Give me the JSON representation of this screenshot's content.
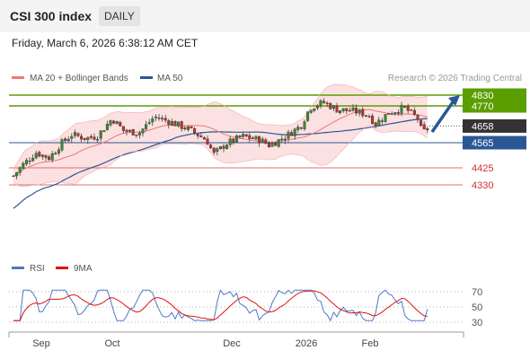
{
  "header": {
    "title": "CSI 300 index",
    "timeframe": "DAILY"
  },
  "datetime": "Friday, March 6, 2026 6:38:12 AM CET",
  "legend": {
    "items": [
      {
        "label": "MA 20 + Bollinger Bands",
        "color": "#ee7777"
      },
      {
        "label": "MA 50",
        "color": "#2b5796"
      }
    ],
    "credit": "Research © 2026 Trading Central"
  },
  "chart_data": [
    {
      "type": "candlestick",
      "y_range": [
        4130,
        4900
      ],
      "x_axis": {
        "tick_labels": [
          "Sep",
          "Oct",
          "Dec",
          "2026",
          "Feb"
        ]
      },
      "levels": [
        {
          "value": 4830,
          "label": "4830",
          "kind": "resistance",
          "color": "#5a9e00"
        },
        {
          "value": 4770,
          "label": "4770",
          "kind": "resistance",
          "color": "#5a9e00"
        },
        {
          "value": 4658,
          "label": "4658",
          "kind": "last-price",
          "color": "#333333"
        },
        {
          "value": 4565,
          "label": "4565",
          "kind": "pivot",
          "color": "#2b5796"
        },
        {
          "value": 4425,
          "label": "4425",
          "kind": "support",
          "color": "#e07070"
        },
        {
          "value": 4330,
          "label": "4330",
          "kind": "support",
          "color": "#e07070"
        }
      ],
      "arrow": {
        "from": 4625,
        "to": 4830,
        "direction": "up"
      }
    },
    {
      "type": "line",
      "series": [
        {
          "name": "RSI",
          "color": "#4f78c8"
        },
        {
          "name": "9MA",
          "color": "#dd1111"
        }
      ],
      "y_range": [
        20,
        80
      ],
      "y_ticks": [
        70,
        50,
        30
      ]
    }
  ]
}
